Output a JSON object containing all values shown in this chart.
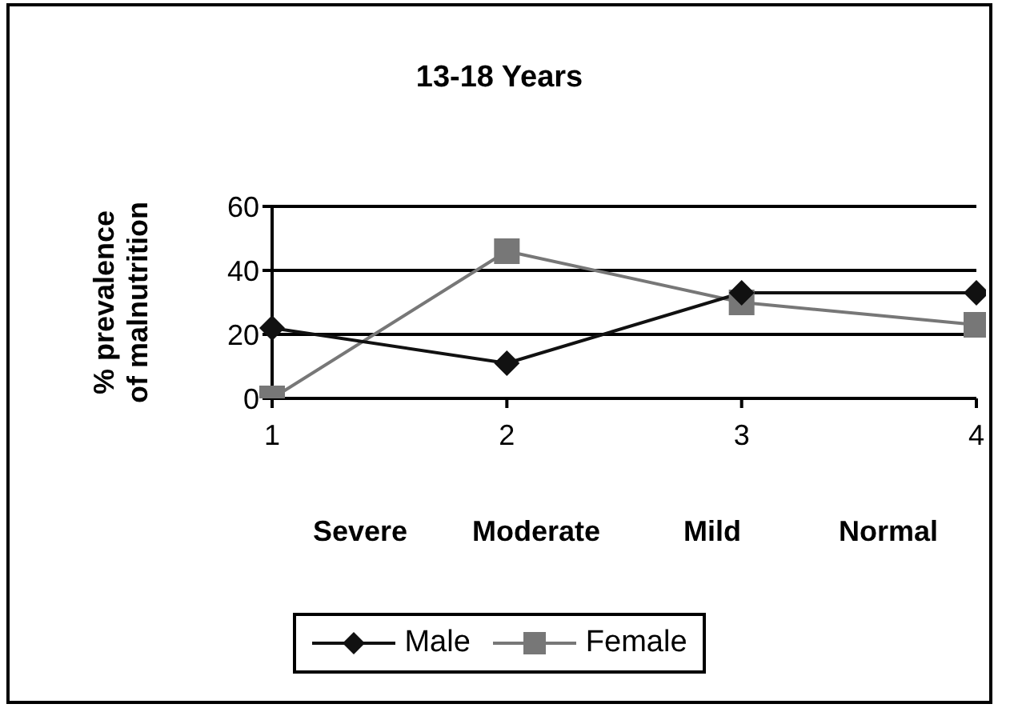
{
  "chart_data": {
    "type": "line",
    "title": "13-18 Years",
    "ylabel": "% prevalence of malnutrition",
    "categories": [
      "1",
      "2",
      "3",
      "4"
    ],
    "series": [
      {
        "name": "Male",
        "color": "#111111",
        "marker": "diamond",
        "values": [
          22,
          11,
          33,
          33
        ]
      },
      {
        "name": "Female",
        "color": "#777777",
        "marker": "square",
        "values": [
          0,
          46,
          30,
          23
        ]
      }
    ],
    "annotations": [
      "Severe",
      "Moderate",
      "Mild",
      "Normal"
    ],
    "ylim": [
      0,
      60
    ],
    "yticks": [
      0,
      20,
      40,
      60
    ],
    "grid": "y",
    "legend": "bottom",
    "line_style": "solid"
  }
}
